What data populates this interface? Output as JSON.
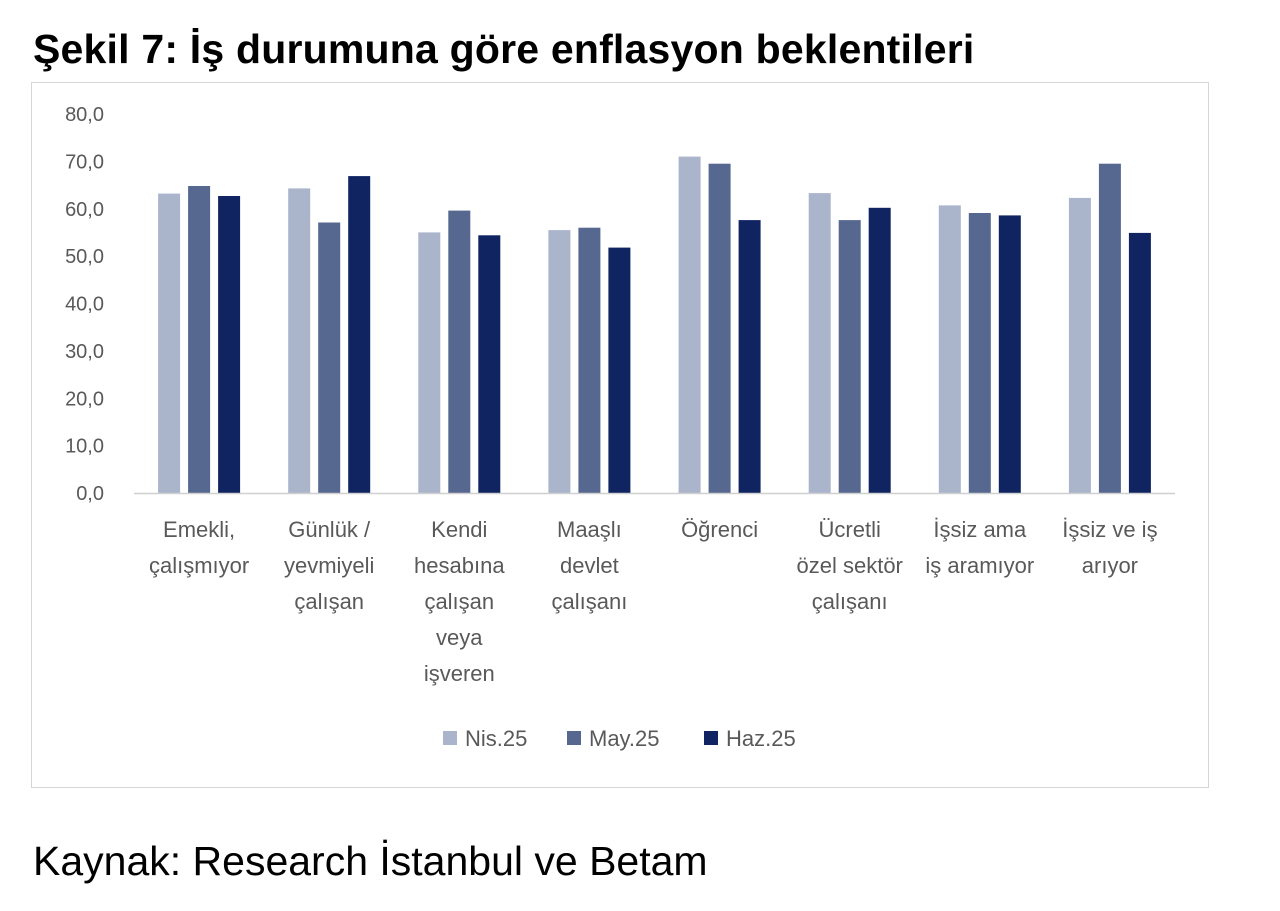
{
  "figure": {
    "title": "Şekil 7: İş durumuna göre enflasyon beklentileri",
    "source": "Kaynak: Research İstanbul ve Betam"
  },
  "chart_data": {
    "type": "bar",
    "categories": [
      [
        "Emekli,",
        "çalışmıyor"
      ],
      [
        "Günlük /",
        "yevmiyeli",
        "çalışan"
      ],
      [
        "Kendi",
        "hesabına",
        "çalışan",
        "veya",
        "işveren"
      ],
      [
        "Maaşlı",
        "devlet",
        "çalışanı"
      ],
      [
        "Öğrenci"
      ],
      [
        "Ücretli",
        "özel sektör",
        "çalışanı"
      ],
      [
        "İşsiz ama",
        "iş aramıyor"
      ],
      [
        "İşsiz ve iş",
        "arıyor"
      ]
    ],
    "series": [
      {
        "name": "Nis.25",
        "color": "#aab4ca",
        "values": [
          63.2,
          64.3,
          55.0,
          55.5,
          71.0,
          63.3,
          60.7,
          62.3
        ]
      },
      {
        "name": "May.25",
        "color": "#56688f",
        "values": [
          64.8,
          57.1,
          59.6,
          56.0,
          69.5,
          57.6,
          59.1,
          69.5
        ]
      },
      {
        "name": "Haz.25",
        "color": "#0f2461",
        "values": [
          62.7,
          66.9,
          54.4,
          51.8,
          57.6,
          60.2,
          58.6,
          54.9
        ]
      }
    ],
    "yticks": [
      "0,0",
      "10,0",
      "20,0",
      "30,0",
      "40,0",
      "50,0",
      "60,0",
      "70,0",
      "80,0"
    ],
    "ylim": [
      0,
      80
    ],
    "grid": false,
    "legend_position": "bottom"
  }
}
